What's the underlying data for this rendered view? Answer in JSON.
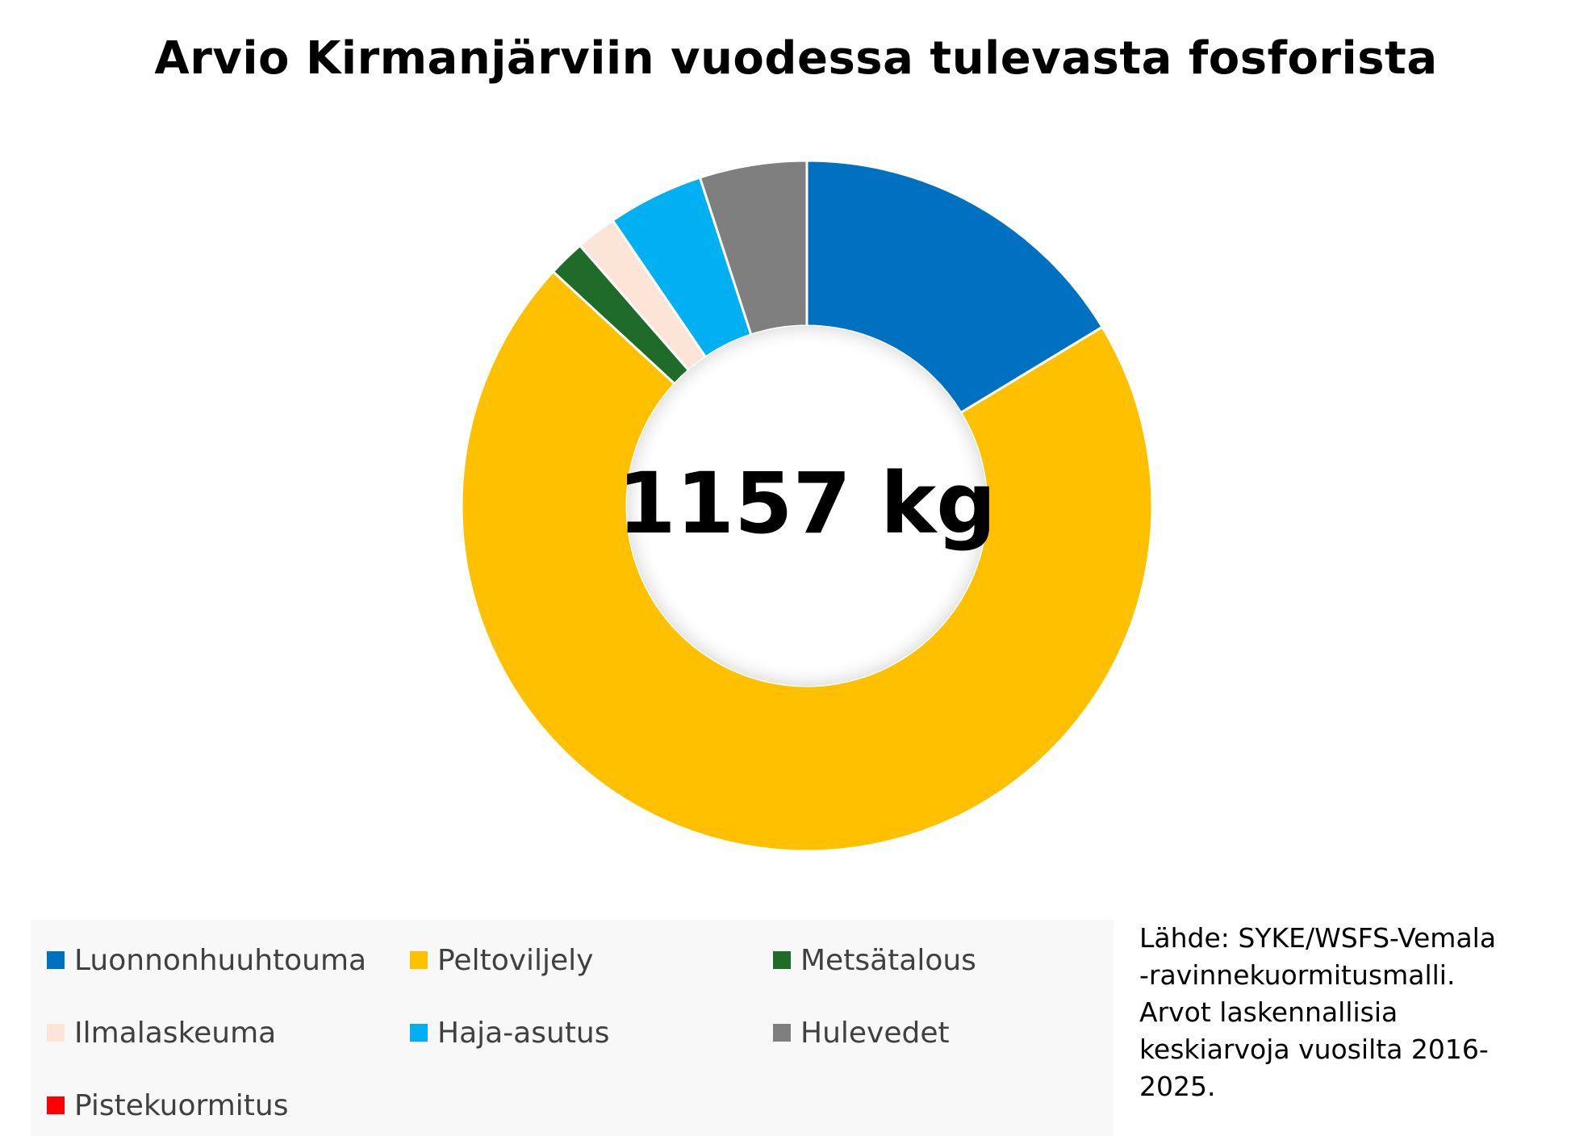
{
  "chart_data": {
    "type": "pie",
    "title": "Arvio Kirmanjärviin vuodessa tulevasta fosforista",
    "center_label": "1157 kg",
    "categories": [
      "Luonnonhuuhtouma",
      "Peltoviljely",
      "Metsätalous",
      "Ilmalaskeuma",
      "Haja-asutus",
      "Hulevedet",
      "Pistekuormitus"
    ],
    "values": [
      189,
      816,
      20,
      22,
      52,
      58,
      0
    ],
    "colors": [
      "#0070C0",
      "#FFC000",
      "#1E6B2A",
      "#FCE4D6",
      "#00B0F0",
      "#7F7F7F",
      "#FF0000"
    ],
    "legend_position": "bottom"
  },
  "source_note": {
    "lines": [
      "Lähde: SYKE/WSFS-Vemala",
      "-ravinnekuormitusmalli.",
      "Arvot laskennallisia",
      "keskiarvoja vuosilta 2016-",
      "2025."
    ]
  }
}
